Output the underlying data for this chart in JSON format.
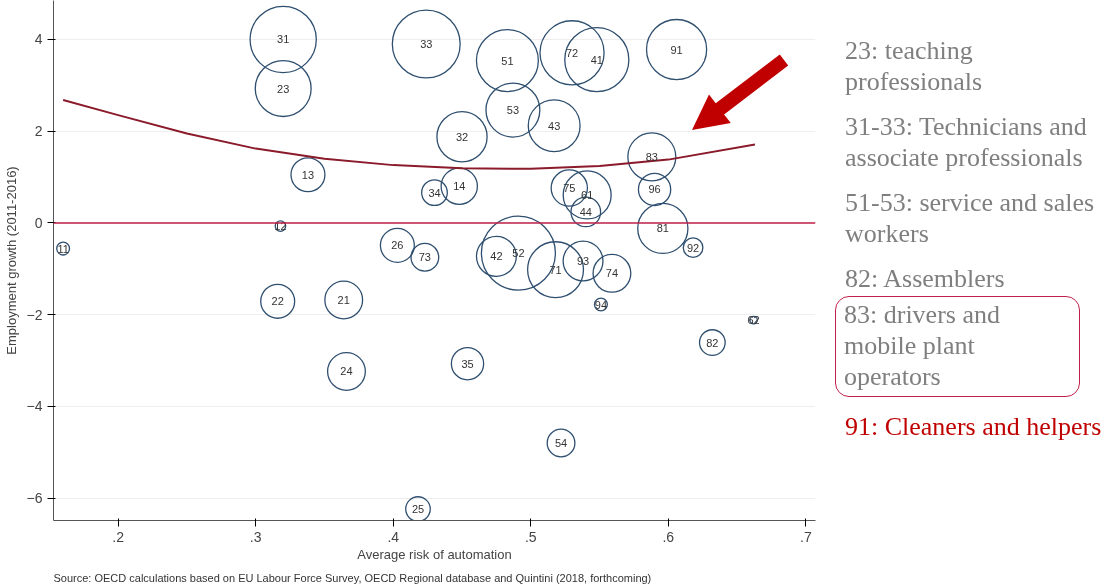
{
  "chart_data": {
    "type": "bubble",
    "xlabel": "Average risk of automation",
    "ylabel": "Employment growth (2011-2016)",
    "xlim": [
      0.153,
      0.707
    ],
    "ylim": [
      -6.49,
      4.85
    ],
    "xticks": [
      {
        "value": 0.2,
        "label": ".2"
      },
      {
        "value": 0.3,
        "label": ".3"
      },
      {
        "value": 0.4,
        "label": ".4"
      },
      {
        "value": 0.5,
        "label": ".5"
      },
      {
        "value": 0.6,
        "label": ".6"
      },
      {
        "value": 0.7,
        "label": ".7"
      }
    ],
    "yticks": [
      -6,
      -4,
      -2,
      0,
      2,
      4
    ],
    "grid": "y",
    "series": [
      {
        "color": "#2f4f6f",
        "x": [
          0.32,
          0.32,
          0.424,
          0.483,
          0.53,
          0.548,
          0.606,
          0.487,
          0.517,
          0.45,
          0.588,
          0.59,
          0.448,
          0.43,
          0.528,
          0.541,
          0.54,
          0.338,
          0.318,
          0.16,
          0.403,
          0.423,
          0.475,
          0.491,
          0.518,
          0.538,
          0.559,
          0.596,
          0.618,
          0.551,
          0.662,
          0.632,
          0.316,
          0.364,
          0.366,
          0.454,
          0.522,
          0.418
        ],
        "values": [
          4.0,
          2.93,
          3.9,
          3.54,
          3.71,
          3.56,
          3.78,
          2.46,
          2.12,
          1.88,
          1.44,
          0.73,
          0.8,
          0.66,
          0.76,
          0.61,
          0.24,
          1.05,
          -0.07,
          -0.56,
          -0.49,
          -0.75,
          -0.73,
          -0.66,
          -1.02,
          -0.83,
          -1.1,
          -0.12,
          -0.54,
          -1.78,
          -2.12,
          -2.61,
          -1.71,
          -1.68,
          -3.24,
          -3.07,
          -4.8,
          -6.24
        ],
        "sizes": [
          0.8,
          0.57,
          0.84,
          0.7,
          0.75,
          0.75,
          0.66,
          0.53,
          0.49,
          0.46,
          0.42,
          0.19,
          0.24,
          0.12,
          0.24,
          0.42,
          0.16,
          0.21,
          0.02,
          0.03,
          0.21,
          0.14,
          0.29,
          1,
          0.57,
          0.29,
          0.26,
          0.46,
          0.07,
          0.03,
          0.01,
          0.12,
          0.21,
          0.26,
          0.26,
          0.19,
          0.14,
          0.11
        ]
      },
      {
        "type": "line",
        "color": "#8b1a2b",
        "x": [
          0.16,
          0.2,
          0.25,
          0.3,
          0.35,
          0.4,
          0.45,
          0.5,
          0.55,
          0.6,
          0.663
        ],
        "values": [
          2.68,
          2.35,
          1.95,
          1.62,
          1.4,
          1.26,
          1.19,
          1.18,
          1.24,
          1.38,
          1.71
        ]
      }
    ],
    "ref_lines": [
      {
        "axis": "y",
        "value": 0,
        "color": "#c0204a"
      }
    ],
    "annotations": [
      {
        "text": "31",
        "x": 0.32,
        "y": 4.0
      },
      {
        "text": "23",
        "x": 0.32,
        "y": 2.93
      },
      {
        "text": "33",
        "x": 0.424,
        "y": 3.9
      },
      {
        "text": "51",
        "x": 0.483,
        "y": 3.54
      },
      {
        "text": "72",
        "x": 0.53,
        "y": 3.71
      },
      {
        "text": "41",
        "x": 0.548,
        "y": 3.56
      },
      {
        "text": "91",
        "x": 0.606,
        "y": 3.78
      },
      {
        "text": "53",
        "x": 0.487,
        "y": 2.46
      },
      {
        "text": "43",
        "x": 0.517,
        "y": 2.12
      },
      {
        "text": "32",
        "x": 0.45,
        "y": 1.88
      },
      {
        "text": "83",
        "x": 0.588,
        "y": 1.44
      },
      {
        "text": "96",
        "x": 0.59,
        "y": 0.73
      },
      {
        "text": "14",
        "x": 0.448,
        "y": 0.8
      },
      {
        "text": "34",
        "x": 0.43,
        "y": 0.66
      },
      {
        "text": "75",
        "x": 0.528,
        "y": 0.76
      },
      {
        "text": "61",
        "x": 0.541,
        "y": 0.61
      },
      {
        "text": "44",
        "x": 0.54,
        "y": 0.24
      },
      {
        "text": "13",
        "x": 0.338,
        "y": 1.05
      },
      {
        "text": "12",
        "x": 0.318,
        "y": -0.07
      },
      {
        "text": "11",
        "x": 0.16,
        "y": -0.56
      },
      {
        "text": "26",
        "x": 0.403,
        "y": -0.49
      },
      {
        "text": "73",
        "x": 0.423,
        "y": -0.75
      },
      {
        "text": "42",
        "x": 0.475,
        "y": -0.73
      },
      {
        "text": "52",
        "x": 0.491,
        "y": -0.66
      },
      {
        "text": "71",
        "x": 0.518,
        "y": -1.02
      },
      {
        "text": "93",
        "x": 0.538,
        "y": -0.83
      },
      {
        "text": "74",
        "x": 0.559,
        "y": -1.1
      },
      {
        "text": "81",
        "x": 0.596,
        "y": -0.12
      },
      {
        "text": "92",
        "x": 0.618,
        "y": -0.54
      },
      {
        "text": "94",
        "x": 0.551,
        "y": -1.78
      },
      {
        "text": "62",
        "x": 0.662,
        "y": -2.12
      },
      {
        "text": "82",
        "x": 0.632,
        "y": -2.61
      },
      {
        "text": "22",
        "x": 0.316,
        "y": -1.71
      },
      {
        "text": "21",
        "x": 0.364,
        "y": -1.68
      },
      {
        "text": "24",
        "x": 0.366,
        "y": -3.24
      },
      {
        "text": "35",
        "x": 0.454,
        "y": -3.07
      },
      {
        "text": "54",
        "x": 0.522,
        "y": -4.8
      },
      {
        "text": "25",
        "x": 0.418,
        "y": -6.24
      },
      "23: teaching professionals",
      "31-33: Technicians and associate professionals",
      "51-53: service and sales workers",
      "82: Assemblers",
      "83: drivers and mobile plant operators",
      "91: Cleaners and helpers",
      "Source: OECD calculations based on EU Labour Force Survey, OECD Regional database and Quintini (2018, forthcoming)"
    ]
  }
}
